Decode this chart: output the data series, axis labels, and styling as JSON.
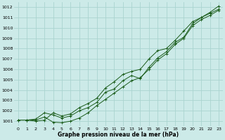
{
  "xlabel": "Graphe pression niveau de la mer (hPa)",
  "xlim": [
    -0.5,
    23.5
  ],
  "ylim": [
    1000.5,
    1012.5
  ],
  "yticks": [
    1001,
    1002,
    1003,
    1004,
    1005,
    1006,
    1007,
    1008,
    1009,
    1010,
    1011,
    1012
  ],
  "xticks": [
    0,
    1,
    2,
    3,
    4,
    5,
    6,
    7,
    8,
    9,
    10,
    11,
    12,
    13,
    14,
    15,
    16,
    17,
    18,
    19,
    20,
    21,
    22,
    23
  ],
  "bg_color": "#cceae8",
  "grid_color": "#aad4d0",
  "line_color": "#1a5c1a",
  "series": [
    [
      1001.1,
      1001.1,
      1001.2,
      1001.8,
      1001.6,
      1001.3,
      1001.5,
      1002.0,
      1002.3,
      1002.8,
      1003.8,
      1004.1,
      1004.9,
      1005.4,
      1005.1,
      1006.2,
      1007.1,
      1007.7,
      1008.6,
      1009.1,
      1010.4,
      1011.0,
      1011.4,
      1011.8
    ],
    [
      1001.1,
      1001.1,
      1001.1,
      1001.4,
      1000.9,
      1000.85,
      1001.0,
      1001.3,
      1001.8,
      1002.5,
      1003.1,
      1003.7,
      1004.3,
      1004.9,
      1005.2,
      1006.0,
      1006.9,
      1007.5,
      1008.4,
      1009.0,
      1010.2,
      1010.8,
      1011.2,
      1011.7
    ],
    [
      1001.1,
      1001.1,
      1001.0,
      1001.1,
      1001.8,
      1001.5,
      1001.7,
      1002.3,
      1002.7,
      1003.2,
      1004.2,
      1004.8,
      1005.5,
      1005.8,
      1006.0,
      1007.0,
      1007.8,
      1008.0,
      1008.8,
      1009.7,
      1010.6,
      1011.0,
      1011.5,
      1012.1
    ]
  ]
}
